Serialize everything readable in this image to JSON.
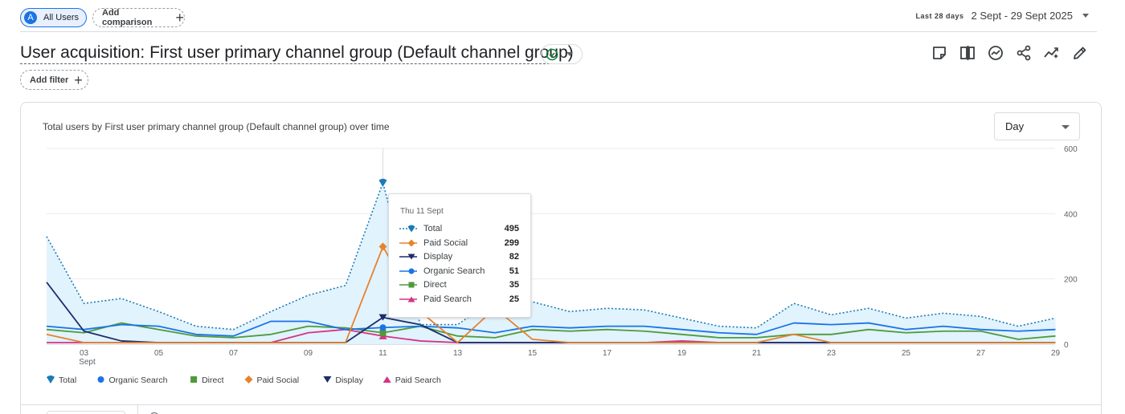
{
  "segment": {
    "avatar_letter": "A",
    "label": "All Users"
  },
  "add_comparison": "Add comparison",
  "date": {
    "preset": "Last 28 days",
    "range": "2 Sept - 29 Sept 2025"
  },
  "report_title": "User acquisition: First user primary channel group (Default channel group)",
  "add_filter": "Add filter",
  "granularity": "Day",
  "colors": {
    "total": "#1a7bb9",
    "organic": "#1a73e8",
    "direct": "#4e9a3a",
    "paid_social": "#e8822b",
    "display": "#1c2d6b",
    "paid_search": "#d63384",
    "area": "#e1f3fd"
  },
  "chart_data": {
    "type": "line",
    "title": "Total users by First user primary channel group (Default channel group) over time",
    "x": [
      2,
      3,
      4,
      5,
      6,
      7,
      8,
      9,
      10,
      11,
      12,
      13,
      14,
      15,
      16,
      17,
      18,
      19,
      20,
      21,
      22,
      23,
      24,
      25,
      26,
      27,
      28,
      29
    ],
    "x_tick_labels": [
      {
        "day": 3,
        "label": "03",
        "sub": "Sept"
      },
      {
        "day": 5,
        "label": "05"
      },
      {
        "day": 7,
        "label": "07"
      },
      {
        "day": 9,
        "label": "09"
      },
      {
        "day": 11,
        "label": "11"
      },
      {
        "day": 13,
        "label": "13"
      },
      {
        "day": 15,
        "label": "15"
      },
      {
        "day": 17,
        "label": "17"
      },
      {
        "day": 19,
        "label": "19"
      },
      {
        "day": 21,
        "label": "21"
      },
      {
        "day": 23,
        "label": "23"
      },
      {
        "day": 25,
        "label": "25"
      },
      {
        "day": 27,
        "label": "27"
      },
      {
        "day": 29,
        "label": "29"
      }
    ],
    "y_ticks": [
      0,
      200,
      400,
      600
    ],
    "ylim": [
      0,
      600
    ],
    "legend_position": "bottom-left",
    "highlight_day": 11,
    "series": [
      {
        "key": "total",
        "name": "Total",
        "marker": "pin",
        "dashed": true,
        "area": true,
        "values": [
          330,
          125,
          140,
          100,
          55,
          45,
          100,
          150,
          180,
          495,
          60,
          60,
          140,
          130,
          100,
          110,
          105,
          80,
          55,
          50,
          125,
          90,
          110,
          80,
          95,
          85,
          55,
          80
        ]
      },
      {
        "key": "organic",
        "name": "Organic Search",
        "marker": "circle",
        "values": [
          55,
          45,
          60,
          55,
          30,
          25,
          70,
          70,
          45,
          51,
          55,
          50,
          35,
          55,
          50,
          55,
          55,
          45,
          35,
          30,
          65,
          60,
          65,
          45,
          55,
          45,
          40,
          45
        ]
      },
      {
        "key": "direct",
        "name": "Direct",
        "marker": "square",
        "values": [
          45,
          35,
          65,
          45,
          25,
          20,
          30,
          55,
          50,
          35,
          55,
          25,
          20,
          45,
          40,
          45,
          40,
          30,
          20,
          20,
          30,
          30,
          45,
          35,
          40,
          40,
          15,
          25
        ]
      },
      {
        "key": "paid_social",
        "name": "Paid Social",
        "marker": "diamond",
        "values": [
          30,
          5,
          5,
          5,
          5,
          5,
          5,
          5,
          5,
          299,
          100,
          5,
          110,
          15,
          5,
          5,
          5,
          5,
          5,
          5,
          30,
          5,
          5,
          5,
          5,
          5,
          5,
          5
        ]
      },
      {
        "key": "display",
        "name": "Display",
        "marker": "tri-down",
        "values": [
          190,
          40,
          10,
          5,
          5,
          5,
          5,
          5,
          5,
          82,
          60,
          5,
          5,
          5,
          5,
          5,
          5,
          5,
          5,
          5,
          5,
          5,
          5,
          5,
          5,
          5,
          5,
          5
        ]
      },
      {
        "key": "paid_search",
        "name": "Paid Search",
        "marker": "tri-up",
        "values": [
          5,
          5,
          5,
          5,
          5,
          5,
          5,
          35,
          45,
          25,
          10,
          5,
          5,
          5,
          5,
          5,
          5,
          10,
          5,
          5,
          5,
          5,
          5,
          5,
          5,
          5,
          5,
          5
        ]
      }
    ]
  },
  "tooltip": {
    "date": "Thu 11 Sept",
    "rows": [
      {
        "key": "total",
        "label": "Total",
        "marker": "pin",
        "dashed": true,
        "value": "495"
      },
      {
        "key": "paid_social",
        "label": "Paid Social",
        "marker": "diamond",
        "value": "299"
      },
      {
        "key": "display",
        "label": "Display",
        "marker": "tri-down",
        "value": "82"
      },
      {
        "key": "organic",
        "label": "Organic Search",
        "marker": "circle",
        "value": "51"
      },
      {
        "key": "direct",
        "label": "Direct",
        "marker": "square",
        "value": "35"
      },
      {
        "key": "paid_search",
        "label": "Paid Search",
        "marker": "tri-up",
        "value": "25"
      }
    ]
  },
  "legend": [
    {
      "key": "total",
      "label": "Total",
      "marker": "pin"
    },
    {
      "key": "organic",
      "label": "Organic Search",
      "marker": "circle"
    },
    {
      "key": "direct",
      "label": "Direct",
      "marker": "square"
    },
    {
      "key": "paid_social",
      "label": "Paid Social",
      "marker": "diamond"
    },
    {
      "key": "display",
      "label": "Display",
      "marker": "tri-down"
    },
    {
      "key": "paid_search",
      "label": "Paid Search",
      "marker": "tri-up"
    }
  ],
  "toolbar_icons": [
    "notes-icon",
    "compare-columns-icon",
    "insights-icon",
    "share-icon",
    "trend-icon",
    "edit-icon"
  ]
}
